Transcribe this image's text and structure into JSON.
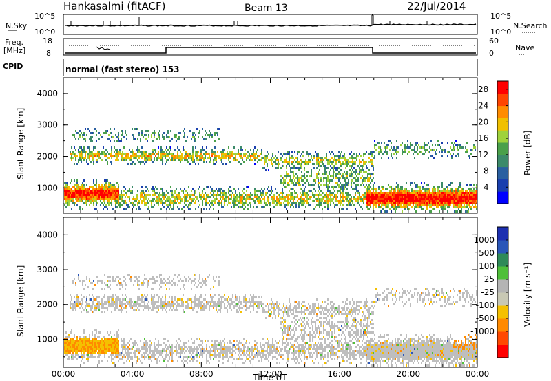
{
  "header": {
    "station": "Hankasalmi (fitACF)",
    "beam": "Beam 13",
    "date": "22/Jul/2014"
  },
  "strip_labels": {
    "nsky": "N.Sky",
    "nsearch": "N.Search",
    "freq_line1": "Freq.",
    "freq_line2": "[MHz]",
    "nave": "Nave",
    "cpid": "CPID",
    "cpid_value": "normal (fast stereo) 153"
  },
  "strip_ticks": {
    "noise_left": [
      "10^5",
      "10^0"
    ],
    "noise_right": [
      "10^5",
      "10^0"
    ],
    "freq_left": [
      "18",
      "8"
    ],
    "nave_right": [
      "60",
      "0"
    ]
  },
  "colors": {
    "power_scale": [
      "#0000ff",
      "#1a3fae",
      "#2a5fa0",
      "#3c8a6a",
      "#4aa04a",
      "#9fd23c",
      "#f0c000",
      "#ff8c00",
      "#ff4500",
      "#ff0000"
    ],
    "velocity_scale": [
      "#1c2fb0",
      "#2a56b8",
      "#2f8a58",
      "#4fbf3a",
      "#b4b4b4",
      "#c8c8b4",
      "#f5c000",
      "#ff8a00",
      "#ff4800",
      "#ff0000"
    ],
    "ground_scatter": "#bebebe"
  },
  "chart_data": [
    {
      "type": "heatmap",
      "panel": "power",
      "ylabel": "Slant Range [km]",
      "ylim": [
        200,
        4500
      ],
      "yticks": [
        "1000",
        "2000",
        "3000",
        "4000"
      ],
      "x": [
        "00:00",
        "04:00",
        "08:00",
        "12:00",
        "16:00",
        "20:00",
        "00:00"
      ],
      "colorbar_label": "Power [dB]",
      "colorbar_ticks": [
        "4",
        "8",
        "12",
        "16",
        "20",
        "24",
        "28"
      ],
      "colorbar_range": [
        0,
        30
      ]
    },
    {
      "type": "heatmap",
      "panel": "velocity",
      "ylabel": "Slant Range [km]",
      "ylim": [
        200,
        4500
      ],
      "yticks": [
        "1000",
        "2000",
        "3000",
        "4000"
      ],
      "x": [
        "00:00",
        "04:00",
        "08:00",
        "12:00",
        "16:00",
        "20:00",
        "00:00"
      ],
      "xlabel": "Time UT",
      "colorbar_label": "Velocity [m s⁻¹]",
      "colorbar_ticks": [
        "1000",
        "500",
        "100",
        "25",
        "-25",
        "-100",
        "-500",
        "-1000"
      ]
    }
  ]
}
